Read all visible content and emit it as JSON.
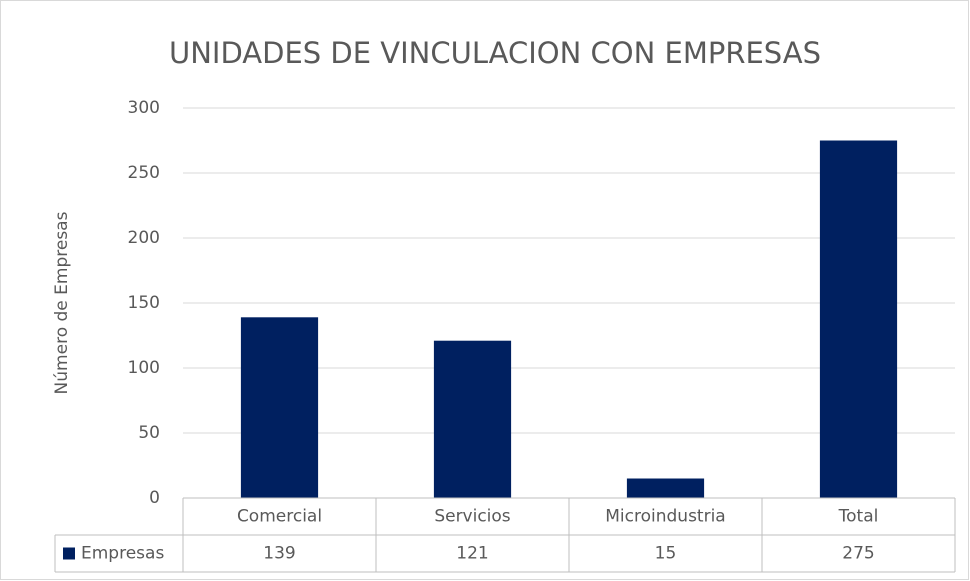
{
  "chart_data": {
    "type": "bar",
    "title": "UNIDADES DE VINCULACION CON EMPRESAS",
    "y_axis_label": "Número de Empresas",
    "categories": [
      "Comercial",
      "Servicios",
      "Microindustria",
      "Total"
    ],
    "series": [
      {
        "name": "Empresas",
        "color": "#002060",
        "values": [
          139,
          121,
          15,
          275
        ]
      }
    ],
    "ylim": [
      0,
      300
    ],
    "yticks": [
      0,
      50,
      100,
      150,
      200,
      250,
      300
    ],
    "grid": true,
    "data_table": true
  }
}
